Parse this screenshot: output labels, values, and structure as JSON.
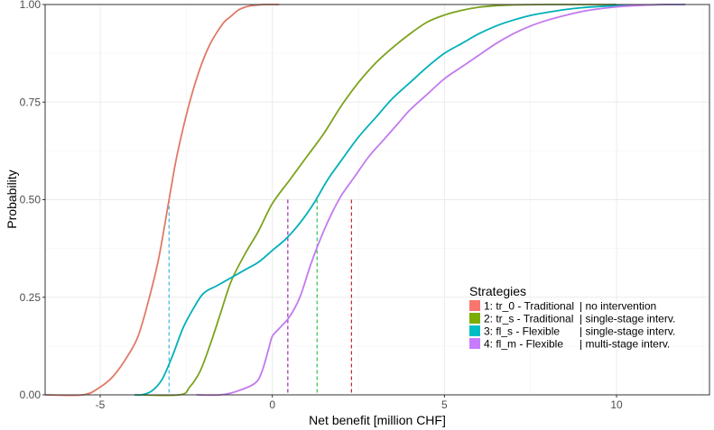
{
  "chart_data": {
    "type": "line",
    "xlabel": "Net benefit [million CHF]",
    "ylabel": "Probability",
    "xlim": [
      -6.6,
      12.7
    ],
    "ylim": [
      0,
      1
    ],
    "xticks": [
      -5,
      0,
      5,
      10
    ],
    "yticks": [
      0.0,
      0.25,
      0.5,
      0.75,
      1.0
    ],
    "xtick_labels": [
      "-5",
      "0",
      "5",
      "10"
    ],
    "ytick_labels": [
      "0.00",
      "0.25",
      "0.50",
      "0.75",
      "1.00"
    ],
    "grid": true,
    "legend": {
      "title": "Strategies",
      "position": "bottom-right",
      "entries": [
        {
          "label": "1: tr_0 - Traditional",
          "desc": "| no intervention",
          "color": "#F8766D"
        },
        {
          "label": "2: tr_s - Traditional",
          "desc": "| single-stage interv.",
          "color": "#7CAE00"
        },
        {
          "label": "3: fl_s  - Flexible",
          "desc": "| single-stage interv.",
          "color": "#00BFC4"
        },
        {
          "label": "4: fl_m - Flexible",
          "desc": "| multi-stage interv.",
          "color": "#C77CFF"
        }
      ]
    },
    "series": [
      {
        "id": "tr_0",
        "color": "#E07A68",
        "x": [
          -6.6,
          -5.5,
          -5.0,
          -4.6,
          -4.2,
          -3.9,
          -3.6,
          -3.3,
          -3.0,
          -2.8,
          -2.6,
          -2.4,
          -2.2,
          -2.0,
          -1.8,
          -1.6,
          -1.4,
          -1.2,
          -1.0,
          -0.8,
          -0.6,
          -0.4,
          -0.2,
          0.0,
          0.2
        ],
        "y": [
          0.0,
          0.0,
          0.02,
          0.05,
          0.1,
          0.15,
          0.24,
          0.35,
          0.5,
          0.6,
          0.68,
          0.75,
          0.81,
          0.86,
          0.9,
          0.93,
          0.955,
          0.97,
          0.985,
          0.993,
          0.997,
          0.999,
          1.0,
          1.0,
          1.0
        ]
      },
      {
        "id": "tr_s",
        "color": "#7CA21E",
        "x": [
          -4.0,
          -2.7,
          -2.4,
          -2.1,
          -1.8,
          -1.5,
          -1.2,
          -0.8,
          -0.4,
          0.0,
          0.5,
          1.0,
          1.5,
          2.0,
          2.5,
          3.0,
          3.5,
          4.0,
          4.5,
          5.0,
          5.5,
          6.0,
          6.5,
          7.0,
          8.0,
          9.0,
          10.0
        ],
        "y": [
          0.0,
          0.0,
          0.02,
          0.06,
          0.13,
          0.21,
          0.29,
          0.36,
          0.42,
          0.49,
          0.55,
          0.61,
          0.67,
          0.74,
          0.8,
          0.85,
          0.89,
          0.925,
          0.955,
          0.973,
          0.985,
          0.993,
          0.997,
          0.999,
          1.0,
          1.0,
          1.0
        ]
      },
      {
        "id": "fl_s",
        "color": "#00B0BA",
        "x": [
          -4.0,
          -3.8,
          -3.5,
          -3.2,
          -2.9,
          -2.6,
          -2.3,
          -2.0,
          -1.6,
          -1.2,
          -0.8,
          -0.4,
          0.0,
          0.4,
          0.8,
          1.2,
          1.6,
          2.0,
          2.5,
          3.0,
          3.5,
          4.0,
          4.5,
          5.0,
          5.5,
          6.0,
          6.5,
          7.0,
          7.5,
          8.0,
          8.5,
          9.0,
          9.5,
          10.0,
          10.5,
          11.0,
          11.5,
          12.0
        ],
        "y": [
          0.0,
          0.0,
          0.01,
          0.04,
          0.1,
          0.17,
          0.22,
          0.26,
          0.28,
          0.3,
          0.32,
          0.34,
          0.37,
          0.4,
          0.44,
          0.49,
          0.55,
          0.6,
          0.66,
          0.71,
          0.76,
          0.8,
          0.84,
          0.875,
          0.9,
          0.925,
          0.945,
          0.96,
          0.972,
          0.98,
          0.987,
          0.992,
          0.995,
          0.997,
          0.998,
          0.999,
          1.0,
          1.0
        ]
      },
      {
        "id": "fl_m",
        "color": "#C37AEE",
        "x": [
          -2.2,
          -1.5,
          -1.0,
          -0.5,
          -0.3,
          -0.1,
          0.0,
          0.2,
          0.5,
          0.8,
          1.1,
          1.4,
          1.7,
          2.0,
          2.4,
          2.8,
          3.2,
          3.6,
          4.0,
          4.5,
          5.0,
          5.5,
          6.0,
          6.5,
          7.0,
          7.5,
          8.0,
          8.5,
          9.0,
          9.5,
          10.0,
          10.5,
          11.0,
          11.5,
          12.0
        ],
        "y": [
          0.0,
          0.0,
          0.01,
          0.03,
          0.06,
          0.12,
          0.15,
          0.17,
          0.2,
          0.25,
          0.33,
          0.4,
          0.46,
          0.51,
          0.56,
          0.61,
          0.65,
          0.69,
          0.73,
          0.77,
          0.81,
          0.84,
          0.87,
          0.9,
          0.925,
          0.945,
          0.96,
          0.972,
          0.982,
          0.989,
          0.994,
          0.997,
          0.999,
          1.0,
          1.0
        ]
      }
    ],
    "medians": [
      {
        "x": -3.0,
        "y": 0.5,
        "color": "#3FB4E6"
      },
      {
        "x": 0.45,
        "y": 0.5,
        "color": "#9B2AA8"
      },
      {
        "x": 1.3,
        "y": 0.5,
        "color": "#33C04C"
      },
      {
        "x": 2.3,
        "y": 0.5,
        "color": "#C8252A"
      }
    ]
  }
}
